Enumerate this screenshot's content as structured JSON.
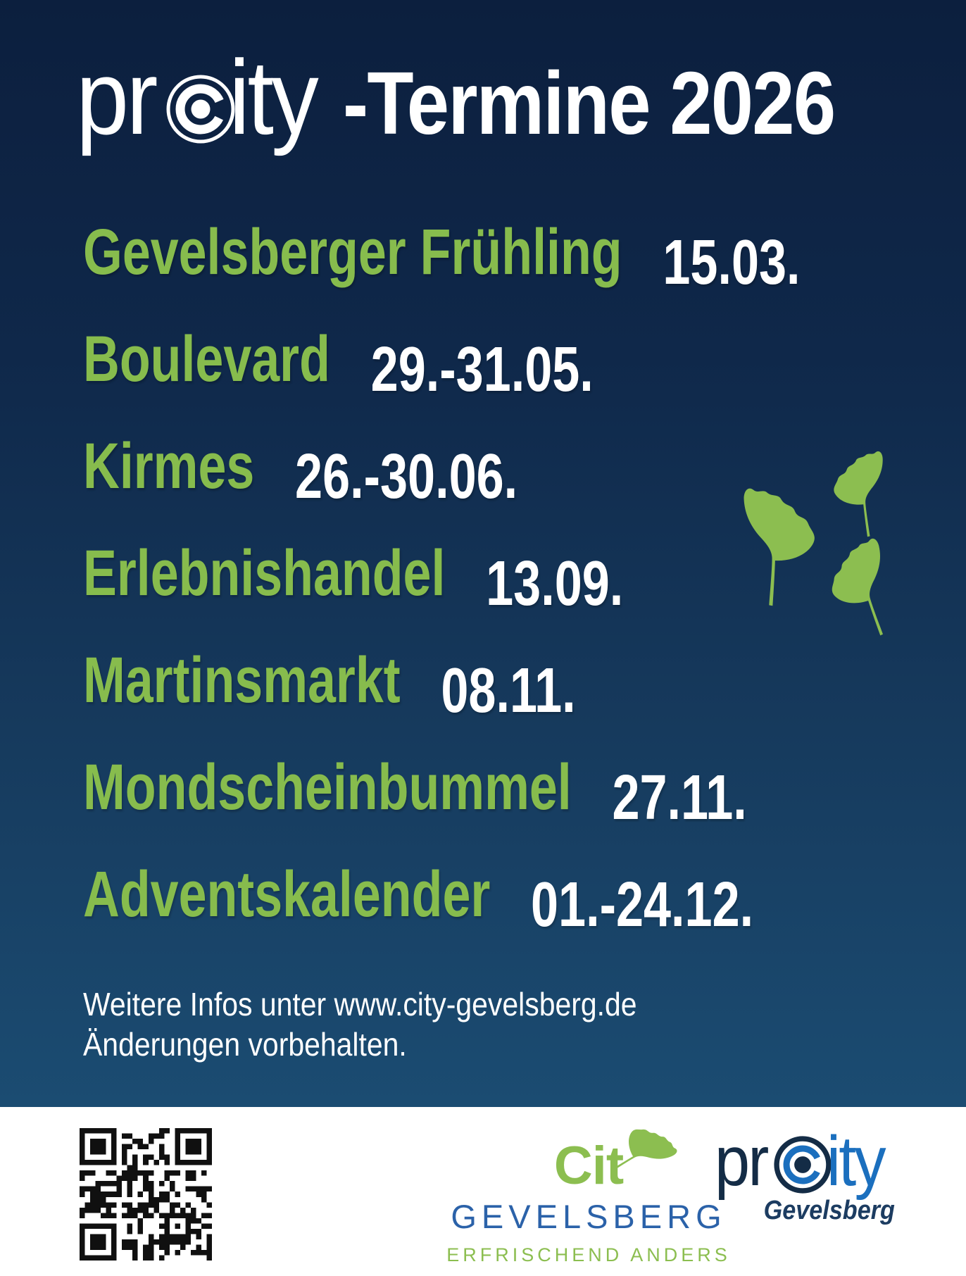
{
  "header": {
    "logo_pre": "pr",
    "logo_post": "ity",
    "bullseye_icon": "bullseye-icon",
    "title_suffix": "-Termine 2026"
  },
  "events": [
    {
      "name": "Gevelsberger Frühling",
      "date": "15.03."
    },
    {
      "name": "Boulevard",
      "date": "29.-31.05."
    },
    {
      "name": "Kirmes",
      "date": "26.-30.06."
    },
    {
      "name": "Erlebnishandel",
      "date": "13.09."
    },
    {
      "name": "Martinsmarkt",
      "date": "08.11."
    },
    {
      "name": "Mondscheinbummel",
      "date": "27.11."
    },
    {
      "name": "Adventskalender",
      "date": "01.-24.12."
    }
  ],
  "notes": {
    "line1": "Weitere Infos unter www.city-gevelsberg.de",
    "line2": "Änderungen vorbehalten."
  },
  "decor": {
    "leaf_icon": "ginkgo-leaf-icon"
  },
  "footer": {
    "qr_icon": "qr-code",
    "city_logo": {
      "word": "Cit",
      "leaf_icon": "ginkgo-leaf-icon",
      "name": "GEVELSBERG",
      "tagline": "ERFRISCHEND ANDERS"
    },
    "procity_logo": {
      "pre": "pr",
      "post": "ity",
      "bullseye_icon": "bullseye-icon",
      "subtitle": "Gevelsberg"
    }
  },
  "colors": {
    "background_top": "#0C1F3E",
    "background_bottom": "#1B4C72",
    "accent_green": "#87BC4D",
    "leaf_green": "#8CBE50",
    "date_white": "#FFFFFF",
    "city_blue": "#2B62A9",
    "procity_dark": "#142C46",
    "procity_blue": "#1B6FBE",
    "footer_bar": "#FFFFFF"
  }
}
